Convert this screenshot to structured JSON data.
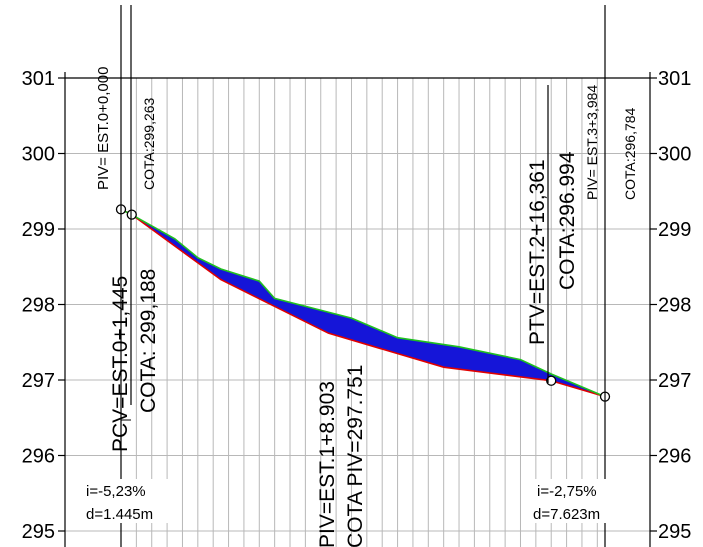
{
  "axis": {
    "y_ticks": [
      301,
      300,
      299,
      298,
      297,
      296,
      295
    ],
    "y_range": [
      295,
      301
    ],
    "x_range": [
      0,
      63
    ],
    "grid_x_step": 2,
    "grid": true
  },
  "annotations": {
    "piv_start": "PIV= EST.0+0,000",
    "cota_start": "COTA:299,263",
    "pcv": "PCV=EST.0+1,445",
    "cota_pcv": "COTA: 299,188",
    "piv_mid": "PIV=EST.1+8.903",
    "cota_mid": "COTA PIV=297.751",
    "ptv": "PTV=EST.2+16,361",
    "cota_ptv": "COTA:296.994",
    "piv_end": "PIV= EST.3+3,984",
    "cota_end": "COTA:296,784",
    "slope_left": "i=-5,23%",
    "dist_left": "d=1.445m",
    "slope_right": "i=-2,75%",
    "dist_right": "d=7.623m"
  },
  "chart_data": {
    "type": "line",
    "series": [
      {
        "color": "#e00000",
        "points": [
          [
            0,
            299.26
          ],
          [
            1.4,
            299.19
          ],
          [
            13,
            298.33
          ],
          [
            27,
            297.62
          ],
          [
            42,
            297.17
          ],
          [
            56,
            296.99
          ],
          [
            63,
            296.78
          ]
        ]
      },
      {
        "color": "#20c020",
        "points": [
          [
            0,
            299.26
          ],
          [
            1.4,
            299.19
          ],
          [
            7,
            298.87
          ],
          [
            10,
            298.62
          ],
          [
            13,
            298.47
          ],
          [
            18,
            298.31
          ],
          [
            20,
            298.08
          ],
          [
            25,
            297.95
          ],
          [
            30,
            297.82
          ],
          [
            36,
            297.56
          ],
          [
            44,
            297.44
          ],
          [
            52,
            297.27
          ],
          [
            56,
            297.08
          ],
          [
            63,
            296.78
          ]
        ]
      }
    ],
    "fill_color": "#1515d8",
    "markers": [
      [
        0,
        299.26
      ],
      [
        1.4,
        299.19
      ],
      [
        56,
        296.99
      ],
      [
        63,
        296.78
      ]
    ]
  }
}
